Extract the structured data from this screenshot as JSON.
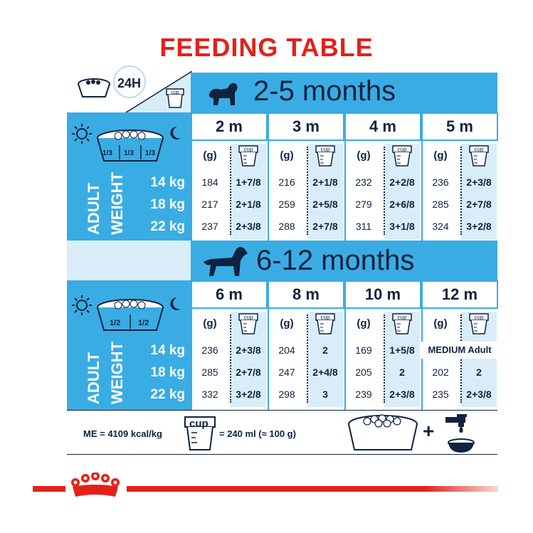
{
  "title": "FEEDING TABLE",
  "header": {
    "per_day": "24H",
    "cup_word": "cup"
  },
  "band1": {
    "title": "2-5 months"
  },
  "band2": {
    "title": "6-12 months"
  },
  "fractions1": [
    "1/3",
    "1/3",
    "1/3"
  ],
  "fractions2": [
    "1/2",
    "1/2"
  ],
  "adult_weight": [
    "ADULT",
    "WEIGHT"
  ],
  "weights": [
    "14 kg",
    "18 kg",
    "22 kg"
  ],
  "unit_g": "(g)",
  "months1": [
    "2 m",
    "3 m",
    "4 m",
    "5 m"
  ],
  "months2": [
    "6 m",
    "8 m",
    "10 m",
    "12 m"
  ],
  "table1": [
    {
      "g": [
        "184",
        "217",
        "237"
      ],
      "cup": [
        "1+7/8",
        "2+1/8",
        "2+3/8"
      ]
    },
    {
      "g": [
        "216",
        "259",
        "288"
      ],
      "cup": [
        "2+1/8",
        "2+5/8",
        "2+7/8"
      ]
    },
    {
      "g": [
        "232",
        "279",
        "311"
      ],
      "cup": [
        "2+2/8",
        "2+6/8",
        "3+1/8"
      ]
    },
    {
      "g": [
        "236",
        "285",
        "324"
      ],
      "cup": [
        "2+3/8",
        "2+7/8",
        "3+2/8"
      ]
    }
  ],
  "table2": [
    {
      "g": [
        "236",
        "285",
        "332"
      ],
      "cup": [
        "2+3/8",
        "2+7/8",
        "3+2/8"
      ]
    },
    {
      "g": [
        "204",
        "247",
        "298"
      ],
      "cup": [
        "2",
        "2+4/8",
        "3"
      ]
    },
    {
      "g": [
        "169",
        "205",
        "239"
      ],
      "cup": [
        "1+5/8",
        "2",
        "2+3/8"
      ]
    },
    {
      "g": [
        "",
        "202",
        "235"
      ],
      "cup": [
        "",
        "2",
        "2+3/8"
      ]
    }
  ],
  "medium_adult": "MEDIUM Adult",
  "footer": {
    "me": "ME = 4109 kcal/kg",
    "cup_word": "cup",
    "equiv": "= 240 ml (≈ 100 g)",
    "plus": "+"
  },
  "colors": {
    "accent_red": "#e32119",
    "blue": "#3aace4",
    "light_blue": "#d9edf8",
    "navy": "#0f2240"
  }
}
